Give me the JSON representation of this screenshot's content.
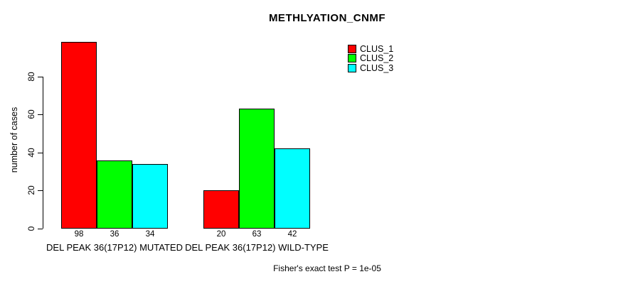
{
  "chart_data": {
    "type": "bar",
    "title": "METHLYATION_CNMF",
    "xlabel": "",
    "ylabel": "number of cases",
    "categories": [
      "DEL PEAK 36(17P12) MUTATED",
      "DEL PEAK 36(17P12) WILD-TYPE"
    ],
    "series": [
      {
        "name": "CLUS_1",
        "color": "#ff0000",
        "values": [
          98,
          20
        ]
      },
      {
        "name": "CLUS_2",
        "color": "#00ff00",
        "values": [
          36,
          63
        ]
      },
      {
        "name": "CLUS_3",
        "color": "#00ffff",
        "values": [
          34,
          42
        ]
      }
    ],
    "yticks": [
      0,
      20,
      40,
      60,
      80
    ],
    "ylim": [
      0,
      98
    ],
    "grid": false,
    "legend_position": "top-right",
    "bar_value_labels_shown": true,
    "annotation": "Fisher's exact test P = 1e-05"
  }
}
